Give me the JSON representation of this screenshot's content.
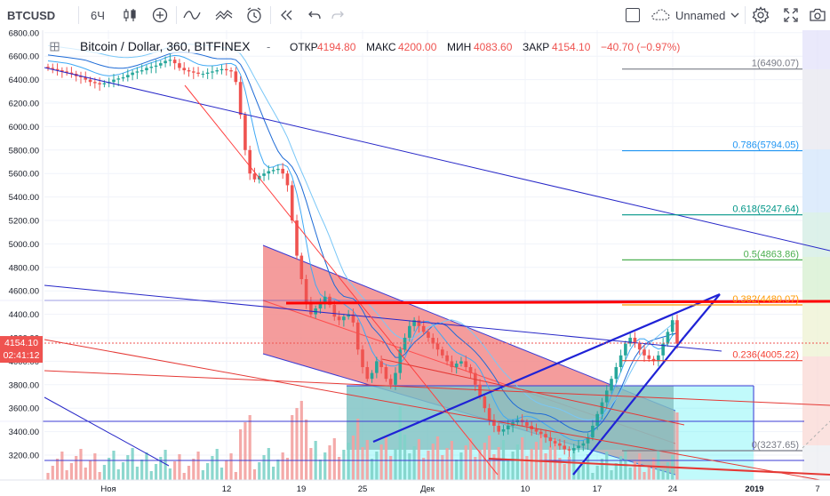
{
  "toolbar": {
    "symbol": "BTCUSD",
    "interval": "6Ч",
    "candles_icon": "candles-icon",
    "compare_icon": "plus-circle-icon",
    "indicators_icon": "indicators-icon",
    "templates_icon": "templates-icon",
    "alert_icon": "alert-clock-icon",
    "replay_icon": "replay-icon",
    "undo_icon": "undo-icon",
    "redo_icon": "redo-icon",
    "layout_name": "Unnamed",
    "settings_icon": "gear-icon",
    "fullscreen_icon": "fullscreen-icon",
    "snapshot_icon": "camera-icon"
  },
  "legend": {
    "title": "Bitcoin / Dollar, 360, BITFINEX",
    "open_label": "ОТКР",
    "open": "4194.80",
    "high_label": "МАКС",
    "high": "4200.00",
    "low_label": "МИН",
    "low": "4083.60",
    "close_label": "ЗАКР",
    "close": "4154.10",
    "change": "−40.70 (−0.97%)"
  },
  "colors": {
    "up": "#26a69a",
    "down": "#ef5350",
    "price_line": "#ef5350",
    "trend": "#1f22d6",
    "resistance": "#ff0000"
  },
  "chart_data": {
    "type": "candlestick",
    "symbol": "BTCUSD",
    "exchange": "BITFINEX",
    "interval_minutes": 360,
    "ylim": [
      3100,
      6800
    ],
    "y_ticks": [
      3200,
      3400,
      3600,
      3800,
      4000,
      4200,
      4400,
      4600,
      4800,
      5000,
      5200,
      5400,
      5600,
      5800,
      6000,
      6200,
      6400,
      6600,
      6800
    ],
    "y_tick_labels": [
      "3200.00",
      "3400.00",
      "3600.00",
      "3800.00",
      "4000.00",
      "4200.00",
      "4400.00",
      "4600.00",
      "4800.00",
      "5000.00",
      "5200.00",
      "5400.00",
      "5600.00",
      "5800.00",
      "6000.00",
      "6200.00",
      "6400.00",
      "6600.00",
      "6800.00"
    ],
    "x_tick_labels": [
      "Ноя",
      "12",
      "19",
      "25",
      "Дек",
      "10",
      "17",
      "24",
      "2019",
      "7"
    ],
    "last_price": 4154.1,
    "last_price_label": "4154.10",
    "countdown": "02:41:12",
    "fibonacci": [
      {
        "ratio": "1",
        "price": 6490.07,
        "label": "1(6490.07)",
        "color": "#787b86"
      },
      {
        "ratio": "0.786",
        "price": 5794.05,
        "label": "0.786(5794.05)",
        "color": "#2196f3"
      },
      {
        "ratio": "0.618",
        "price": 5247.64,
        "label": "0.618(5247.64)",
        "color": "#009688"
      },
      {
        "ratio": "0.5",
        "price": 4863.86,
        "label": "0.5(4863.86)",
        "color": "#4caf50"
      },
      {
        "ratio": "0.382",
        "price": 4480.07,
        "label": "0.382(4480.07)",
        "color": "#ff9800"
      },
      {
        "ratio": "0.236",
        "price": 4005.22,
        "label": "0.236(4005.22)",
        "color": "#f44336"
      },
      {
        "ratio": "0",
        "price": 3237.65,
        "label": "0(3237.65)",
        "color": "#787b86"
      }
    ],
    "closes": [
      6500,
      6490,
      6480,
      6470,
      6460,
      6450,
      6430,
      6420,
      6400,
      6380,
      6370,
      6360,
      6370,
      6380,
      6400,
      6410,
      6420,
      6440,
      6460,
      6470,
      6480,
      6500,
      6510,
      6520,
      6540,
      6560,
      6570,
      6540,
      6500,
      6480,
      6470,
      6460,
      6450,
      6450,
      6460,
      6470,
      6480,
      6490,
      6480,
      6470,
      6380,
      6100,
      5800,
      5600,
      5550,
      5580,
      5600,
      5620,
      5630,
      5640,
      5600,
      5500,
      5200,
      4900,
      4700,
      4500,
      4400,
      4450,
      4500,
      4550,
      4480,
      4380,
      4350,
      4380,
      4400,
      4330,
      4100,
      3950,
      3850,
      3900,
      4000,
      3950,
      3850,
      3800,
      3900,
      4100,
      4200,
      4300,
      4350,
      4300,
      4250,
      4200,
      4150,
      4100,
      4050,
      4000,
      3950,
      3980,
      4000,
      3950,
      3900,
      3800,
      3700,
      3600,
      3500,
      3450,
      3400,
      3420,
      3450,
      3480,
      3500,
      3480,
      3450,
      3420,
      3400,
      3380,
      3350,
      3320,
      3300,
      3280,
      3250,
      3240,
      3260,
      3280,
      3300,
      3350,
      3450,
      3550,
      3650,
      3750,
      3850,
      3950,
      4050,
      4150,
      4200,
      4150,
      4100,
      4050,
      4020,
      4000,
      4050,
      4150,
      4250,
      4350,
      4150
    ]
  }
}
